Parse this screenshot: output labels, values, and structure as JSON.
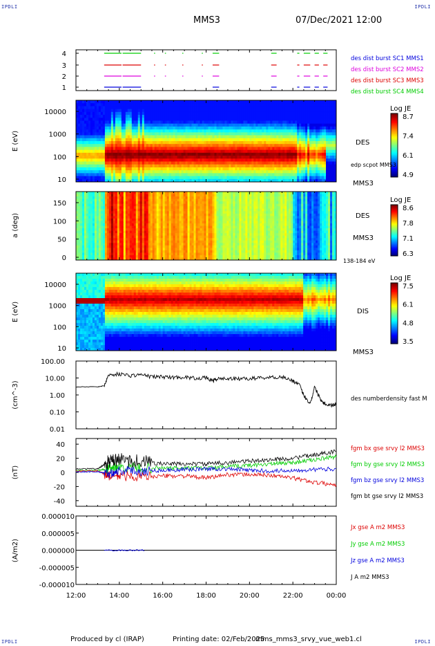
{
  "header": {
    "corner_logo": "IPDLI",
    "spacecraft": "MMS3",
    "datetime": "07/Dec/2021 12:00"
  },
  "footer": {
    "produced_by": "Produced by cl (IRAP)",
    "printing_date": "Printing date: 02/Feb/2025",
    "filename": "mms_mms3_srvy_vue_web1.cl"
  },
  "x_axis": {
    "ticks": [
      "12:00",
      "14:00",
      "16:00",
      "18:00",
      "20:00",
      "22:00",
      "00:00"
    ]
  },
  "colors": {
    "blue": "#0000dd",
    "magenta": "#dd00dd",
    "red": "#dd0000",
    "green": "#00cc00",
    "black": "#000000"
  },
  "chart_data": [
    {
      "type": "line",
      "panel": "burst-intervals",
      "y_ticks": [
        "4",
        "3",
        "2",
        "1"
      ],
      "legend": [
        "des dist burst SC1 MMS1",
        "des dist burst SC2 MMS2",
        "des dist burst SC3 MMS3",
        "des dist burst SC4 MMS4"
      ],
      "intervals_hours": [
        [
          13.3,
          14.1
        ],
        [
          14.15,
          15.0
        ],
        [
          15.6,
          15.65
        ],
        [
          16.1,
          16.15
        ],
        [
          16.9,
          16.95
        ],
        [
          17.8,
          17.85
        ],
        [
          18.3,
          18.6
        ],
        [
          21.0,
          21.25
        ],
        [
          22.2,
          22.3
        ],
        [
          22.5,
          22.8
        ],
        [
          23.0,
          23.2
        ],
        [
          23.4,
          23.6
        ]
      ]
    },
    {
      "type": "heatmap",
      "panel": "des-energy-spectrogram",
      "ylabel": "E (eV)",
      "y_ticks": [
        "10000",
        "1000",
        "100",
        "10"
      ],
      "right_labels": [
        "DES",
        "edp scpot MMS3",
        "MMS3"
      ],
      "colorbar": {
        "title": "Log JE",
        "ticks": [
          "8.7",
          "7.4",
          "6.1",
          "4.9"
        ]
      }
    },
    {
      "type": "heatmap",
      "panel": "des-pitch-angle",
      "ylabel": "a (deg)",
      "y_ticks": [
        "150",
        "100",
        "50",
        "0"
      ],
      "right_labels": [
        "DES",
        "MMS3",
        "138-184 eV"
      ],
      "colorbar": {
        "title": "Log JE",
        "ticks": [
          "8.6",
          "7.8",
          "7.1",
          "6.3"
        ]
      }
    },
    {
      "type": "heatmap",
      "panel": "dis-energy-spectrogram",
      "ylabel": "E (eV)",
      "y_ticks": [
        "10000",
        "1000",
        "100",
        "10"
      ],
      "right_labels": [
        "DIS",
        "MMS3"
      ],
      "colorbar": {
        "title": "Log JE",
        "ticks": [
          "7.5",
          "6.1",
          "4.8",
          "3.5"
        ]
      }
    },
    {
      "type": "line",
      "panel": "density",
      "ylabel": "(cm^-3)",
      "y_ticks": [
        "100.00",
        "10.00",
        "1.00",
        "0.10",
        "0.01"
      ],
      "legend": [
        "des numberdensity fast M"
      ],
      "x": [
        12.0,
        13.0,
        13.3,
        13.5,
        14.0,
        14.5,
        15.0,
        15.5,
        16.0,
        16.5,
        17.0,
        17.5,
        18.0,
        18.3,
        18.5,
        19.0,
        19.5,
        20.0,
        20.5,
        21.0,
        21.5,
        22.0,
        22.3,
        22.5,
        22.8,
        23.0,
        23.3,
        23.5,
        23.8,
        24.0
      ],
      "y": [
        3.0,
        3.0,
        3.5,
        15.0,
        18.0,
        14.0,
        16.0,
        12.0,
        12.0,
        11.0,
        11.5,
        10.0,
        10.5,
        7.0,
        9.0,
        9.5,
        9.0,
        9.5,
        10.5,
        11.0,
        12.0,
        7.0,
        4.0,
        1.0,
        0.3,
        3.0,
        0.5,
        0.3,
        0.25,
        0.3
      ]
    },
    {
      "type": "line",
      "panel": "magnetic-field",
      "ylabel": "(nT)",
      "y_ticks": [
        "40",
        "20",
        "0",
        "-20",
        "-40"
      ],
      "x": [
        12.0,
        13.0,
        13.5,
        14.0,
        15.0,
        16.0,
        17.0,
        18.0,
        19.0,
        20.0,
        21.0,
        22.0,
        23.0,
        24.0
      ],
      "series": [
        {
          "name": "fgm bx gse srvy l2 MMS3",
          "y": [
            2,
            2,
            -5,
            -5,
            -6,
            -5,
            -5,
            -8,
            -3,
            -3,
            -4,
            -8,
            -14,
            -18
          ]
        },
        {
          "name": "fgm by gse srvy l2 MMS3",
          "y": [
            3,
            3,
            5,
            8,
            6,
            6,
            6,
            6,
            8,
            10,
            12,
            14,
            18,
            22
          ]
        },
        {
          "name": "fgm bz gse srvy l2 MMS3",
          "y": [
            1,
            1,
            -2,
            3,
            2,
            3,
            4,
            5,
            5,
            3,
            2,
            3,
            4,
            5
          ]
        },
        {
          "name": "fgm bt gse srvy l2 MMS3",
          "y": [
            5,
            5,
            15,
            18,
            16,
            12,
            12,
            12,
            14,
            16,
            18,
            20,
            25,
            30
          ]
        }
      ]
    },
    {
      "type": "line",
      "panel": "current-density",
      "ylabel": "(A/m2)",
      "y_ticks": [
        "0.000010",
        "0.000005",
        "0.000000",
        "-0.000005",
        "-0.000010"
      ],
      "legend": [
        "Jx gse A m2 MMS3",
        "Jy gse A m2 MMS3",
        "Jz gse A m2 MMS3",
        "J A m2 MMS3"
      ]
    }
  ]
}
